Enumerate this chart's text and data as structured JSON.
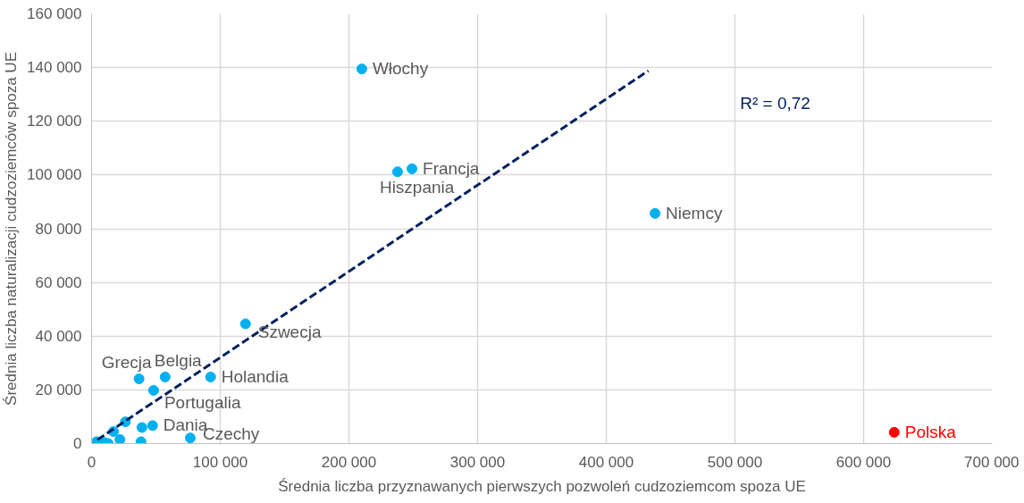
{
  "chart_data": {
    "type": "scatter",
    "xlabel": "Średnia liczba przyznawanych pierwszych pozwoleń cudzoziemcom spoza UE",
    "ylabel": "Średnia liczba naturalizacji cudzoziemców spoza UE",
    "xlim": [
      0,
      700000
    ],
    "ylim": [
      0,
      160000
    ],
    "xticks": [
      0,
      {
        "value": 100000,
        "label": "100 000"
      },
      {
        "value": 200000,
        "label": "200 000"
      },
      {
        "value": 300000,
        "label": "300 000"
      },
      {
        "value": 400000,
        "label": "400 000"
      },
      {
        "value": 500000,
        "label": "500 000"
      },
      {
        "value": 600000,
        "label": "600 000"
      },
      {
        "value": 700000,
        "label": "700 000"
      }
    ],
    "yticks": [
      0,
      {
        "value": 20000,
        "label": "20 000"
      },
      {
        "value": 40000,
        "label": "40 000"
      },
      {
        "value": 60000,
        "label": "60 000"
      },
      {
        "value": 80000,
        "label": "80 000"
      },
      {
        "value": 100000,
        "label": "100 000"
      },
      {
        "value": 120000,
        "label": "120 000"
      },
      {
        "value": 140000,
        "label": "140 000"
      },
      {
        "value": 160000,
        "label": "160 000"
      }
    ],
    "grid": true,
    "marker": "circle",
    "series": [
      {
        "color": "#00b0f0",
        "x": [
          210000,
          249000,
          237800,
          437900,
          119600,
          92500,
          57200,
          36900,
          48200,
          47400,
          39100,
          76700,
          26300,
          38400,
          3800,
          10000,
          15500,
          17000,
          19000,
          22000,
          13000
        ],
        "values": [
          139500,
          102300,
          101200,
          85700,
          44600,
          24800,
          24800,
          24100,
          19800,
          6700,
          6000,
          2100,
          8100,
          700,
          700,
          400,
          null,
          4500,
          null,
          1500,
          0
        ]
      },
      {
        "name": "Polska",
        "color": "#ff0000",
        "x": [
          623800
        ],
        "values": [
          4200
        ]
      },
      {
        "type": "line",
        "color": "#002060",
        "line_style": "dashed",
        "marker": "none",
        "x": [
          4500,
          432700
        ],
        "values": [
          1400,
          138800
        ]
      }
    ],
    "annotations": [
      {
        "text": "Włochy",
        "x": 210000,
        "y": 139500
      },
      {
        "text": "Francja",
        "x": 249000,
        "y": 102300
      },
      {
        "text": "Hiszpania",
        "x": 237800,
        "y": 101200
      },
      {
        "text": "Niemcy",
        "x": 437900,
        "y": 85700
      },
      {
        "text": "Szwecja",
        "x": 119600,
        "y": 44600
      },
      {
        "text": "Holandia",
        "x": 92500,
        "y": 24800
      },
      {
        "text": "Belgia",
        "x": 57200,
        "y": 24800
      },
      {
        "text": "Grecja",
        "x": 36900,
        "y": 24100
      },
      {
        "text": "Portugalia",
        "x": 48200,
        "y": 19800
      },
      {
        "text": "Dania",
        "x": 47400,
        "y": 6700
      },
      {
        "text": "Czechy",
        "x": 76700,
        "y": 2100
      },
      "R² = 0,72"
    ]
  }
}
